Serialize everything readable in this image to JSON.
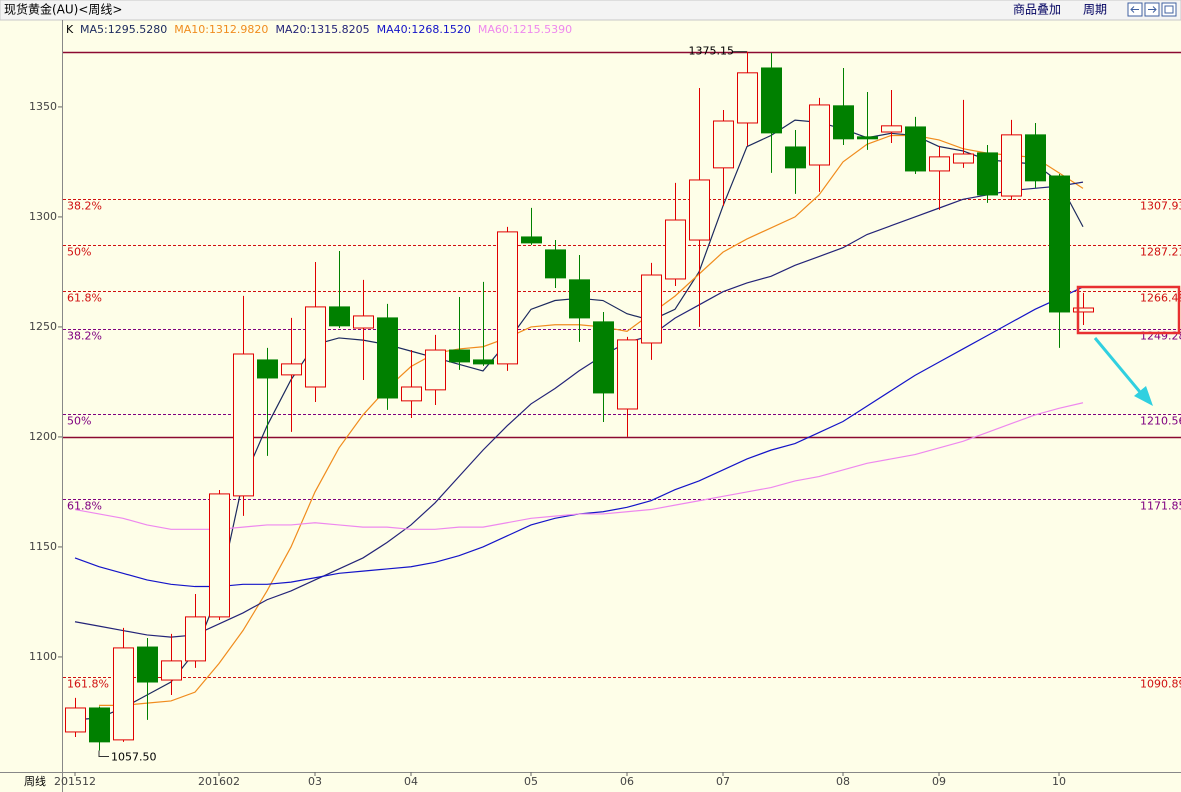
{
  "header": {
    "title": "现货黄金(AU)<周线>",
    "buttons": [
      "商品叠加",
      "周期"
    ]
  },
  "chart_data": {
    "type": "candlestick",
    "legend_prefix": "K",
    "axis_label": "周线",
    "categories": [
      "201512",
      null,
      null,
      null,
      null,
      null,
      "201602",
      null,
      null,
      null,
      "03",
      null,
      null,
      null,
      "04",
      null,
      null,
      null,
      null,
      "05",
      null,
      null,
      null,
      "06",
      null,
      null,
      null,
      "07",
      null,
      null,
      null,
      null,
      "08",
      null,
      null,
      null,
      "09",
      null,
      null,
      null,
      null,
      "10",
      null
    ],
    "open": [
      1065.9,
      1076.8,
      1062.3,
      1104.5,
      1089.5,
      1098.2,
      1118.2,
      1173.2,
      1235,
      1228.2,
      1222.7,
      1259.1,
      1249.5,
      1254.1,
      1216.4,
      1221.4,
      1239.5,
      1235,
      1233.2,
      1290.9,
      1285,
      1271.4,
      1252.3,
      1212.7,
      1242.7,
      1271.8,
      1289.5,
      1322.3,
      1342.7,
      1367.7,
      1331.8,
      1323.6,
      1350.5,
      1336.4,
      1338.6,
      1340.9,
      1320.9,
      1324.5,
      1329.1,
      1309.5,
      1337.3,
      1318.6,
      1256.8
    ],
    "high": [
      1081.4,
      1077.5,
      1113.2,
      1108.6,
      1110.5,
      1128.6,
      1175.9,
      1264.1,
      1240.5,
      1254.1,
      1279.5,
      1284.5,
      1271.4,
      1260.5,
      1239.5,
      1246.4,
      1263.6,
      1270.5,
      1295.5,
      1304.1,
      1289.5,
      1282.7,
      1256.8,
      1245.5,
      1279.1,
      1315.5,
      1358.6,
      1348.6,
      1375.15,
      1374.5,
      1339.5,
      1354.1,
      1367.7,
      1356.8,
      1357.7,
      1345.5,
      1332.3,
      1353.2,
      1332.7,
      1344.1,
      1342.7,
      1319.5,
      1265.5
    ],
    "low": [
      1063.6,
      1057.5,
      1061.4,
      1071.4,
      1082.7,
      1095,
      1116.8,
      1164.1,
      1191.4,
      1202.3,
      1215.9,
      1249.5,
      1225.9,
      1212.3,
      1208.6,
      1214.5,
      1230.5,
      1232.3,
      1230,
      1287.3,
      1267.7,
      1243.2,
      1206.8,
      1200,
      1235,
      1268.6,
      1250,
      1305,
      1332.3,
      1320,
      1310.5,
      1311.4,
      1332.7,
      1330.5,
      1333.6,
      1319.5,
      1303.2,
      1322.3,
      1306.4,
      1307.7,
      1313.2,
      1240.5,
      1250.9
    ],
    "close": [
      1076.8,
      1061.4,
      1104.1,
      1088.6,
      1098.2,
      1118.2,
      1174.1,
      1237.7,
      1226.8,
      1233.2,
      1259.1,
      1250.5,
      1255,
      1217.7,
      1222.7,
      1239.5,
      1234.1,
      1233.2,
      1293.2,
      1288.2,
      1272.3,
      1254.1,
      1220,
      1244.1,
      1273.6,
      1298.6,
      1316.8,
      1343.6,
      1365.5,
      1338.2,
      1322.3,
      1350.9,
      1335.5,
      1335.5,
      1341.4,
      1320.9,
      1327.3,
      1328.6,
      1310,
      1337.3,
      1316.4,
      1256.8,
      1258.6
    ],
    "up_color": "#e00000",
    "down_color": "#008000",
    "series": [
      {
        "name": "MA5:1295.5280",
        "color": "#1c2a5e",
        "values": [
          1071.4,
          1072.3,
          1076.8,
          1082.7,
          1088.6,
          1102.3,
          1129.5,
          1180,
          1205,
          1226,
          1242,
          1245,
          1244,
          1242,
          1239,
          1236,
          1233,
          1230,
          1243,
          1258,
          1262,
          1263,
          1262,
          1256,
          1253,
          1258,
          1275,
          1305,
          1332,
          1337,
          1344,
          1343,
          1340,
          1336,
          1338,
          1337,
          1332,
          1330,
          1326,
          1325,
          1324,
          1316,
          1295.528
        ]
      },
      {
        "name": "MA10:1312.9820",
        "color": "#f08c1e",
        "values": [
          null,
          1078,
          1078,
          1079,
          1080,
          1084,
          1097,
          1112,
          1130,
          1150,
          1175,
          1195,
          1210,
          1222,
          1232,
          1238,
          1240,
          1241,
          1245,
          1250,
          1251,
          1251,
          1250,
          1248,
          1256,
          1264,
          1274,
          1284,
          1290,
          1295,
          1300,
          1310,
          1325,
          1333,
          1337,
          1337,
          1335,
          1331,
          1329,
          1328,
          1327,
          1320,
          1312.982
        ]
      },
      {
        "name": "MA20:1315.8205",
        "color": "#242478",
        "values": [
          1116,
          1114,
          1112,
          1110,
          1109,
          1110,
          1115,
          1120,
          1126,
          1130,
          1135,
          1140,
          1145,
          1152,
          1160,
          1170,
          1182,
          1194,
          1205,
          1215,
          1222,
          1230,
          1237,
          1243,
          1246,
          1254,
          1260,
          1266,
          1270,
          1273,
          1278,
          1282,
          1286,
          1292,
          1296,
          1300,
          1304,
          1308,
          1310,
          1312,
          1313,
          1314,
          1315.8205
        ]
      },
      {
        "name": "MA40:1268.1520",
        "color": "#1414c8",
        "values": [
          1145,
          1141,
          1138,
          1135,
          1133,
          1132,
          1132,
          1133,
          1133,
          1134,
          1136,
          1138,
          1139,
          1140,
          1141,
          1143,
          1146,
          1150,
          1155,
          1160,
          1163,
          1165,
          1166,
          1168,
          1171,
          1176,
          1180,
          1185,
          1190,
          1194,
          1197,
          1202,
          1207,
          1214,
          1221,
          1228,
          1234,
          1240,
          1246,
          1252,
          1258,
          1263,
          1268.152
        ]
      },
      {
        "name": "MA60:1215.5390",
        "color": "#ee88ee",
        "values": [
          1167,
          1165,
          1163,
          1160,
          1158,
          1158,
          1158,
          1159,
          1160,
          1160,
          1161,
          1160,
          1159,
          1159,
          1158,
          1158,
          1159,
          1159,
          1161,
          1163,
          1164,
          1165,
          1165,
          1166,
          1167,
          1169,
          1171,
          1173,
          1175,
          1177,
          1180,
          1182,
          1185,
          1188,
          1190,
          1192,
          1195,
          1198,
          1202,
          1206,
          1210,
          1213,
          1215.539
        ]
      }
    ],
    "ylim": [
      1047.7,
      1388.6
    ],
    "yticks": [
      1100,
      1150,
      1200,
      1250,
      1300,
      1350
    ],
    "levels": [
      {
        "value": 1375.15,
        "color": "#8b0a32",
        "style": "solid"
      },
      {
        "value": 1307.93,
        "ratio": "38.2%",
        "color": "#d01010",
        "style": "dashed"
      },
      {
        "value": 1287.21,
        "ratio": "50%",
        "color": "#d01010",
        "style": "dashed"
      },
      {
        "value": 1266.49,
        "ratio": "61.8%",
        "color": "#d01010",
        "style": "dashed"
      },
      {
        "value": 1249.28,
        "ratio": "38.2%",
        "color": "#800080",
        "style": "dashed"
      },
      {
        "value": 1210.56,
        "ratio": "50%",
        "color": "#800080",
        "style": "dashed"
      },
      {
        "value": 1200,
        "color": "#8b0a32",
        "style": "solid"
      },
      {
        "value": 1171.85,
        "ratio": "61.8%",
        "color": "#800080",
        "style": "dashed"
      },
      {
        "value": 1090.89,
        "ratio": "161.8%",
        "color": "#d01010",
        "style": "dashed"
      }
    ],
    "annotations": [
      {
        "index": 28,
        "value": 1375.15
      },
      {
        "index": 1,
        "value": 1057.5,
        "label": "1057.50"
      }
    ]
  }
}
